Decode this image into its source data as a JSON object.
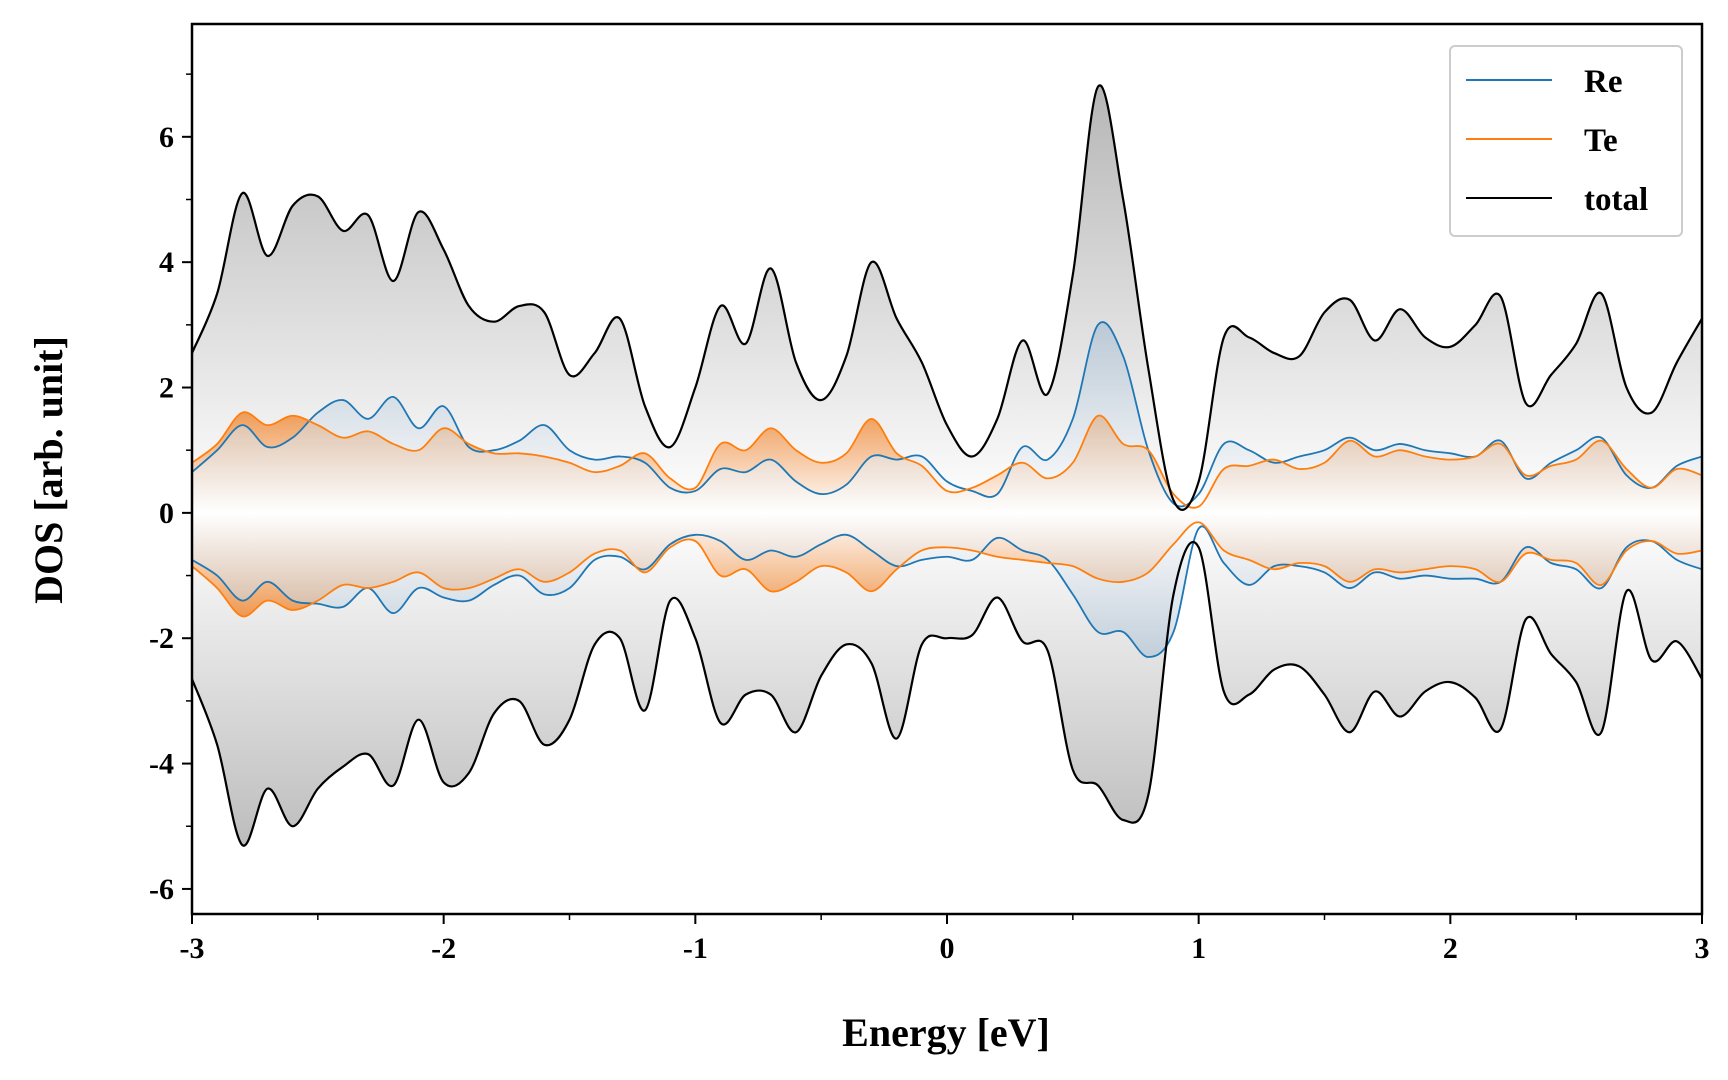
{
  "chart_data": {
    "type": "line",
    "xlabel": "Energy [eV]",
    "ylabel": "DOS [arb. unit]",
    "xlim": [
      -3,
      3
    ],
    "ylim": [
      -6.4,
      7.8
    ],
    "x_ticks": [
      -3,
      -2,
      -1,
      0,
      1,
      2,
      3
    ],
    "x_tick_labels": [
      "-3",
      "-2",
      "-1",
      "0",
      "1",
      "2",
      "3"
    ],
    "y_ticks": [
      -6,
      -4,
      -2,
      0,
      2,
      4,
      6
    ],
    "y_tick_labels": [
      "-6",
      "-4",
      "-2",
      "0",
      "2",
      "4",
      "6"
    ],
    "grid": false,
    "legend_position": "top-right",
    "colors": {
      "Re": "#1f77b4",
      "Te": "#ff7f0e",
      "total": "#000000"
    },
    "x": [
      -3.0,
      -2.9,
      -2.8,
      -2.7,
      -2.6,
      -2.5,
      -2.4,
      -2.3,
      -2.2,
      -2.1,
      -2.0,
      -1.9,
      -1.8,
      -1.7,
      -1.6,
      -1.5,
      -1.4,
      -1.3,
      -1.2,
      -1.1,
      -1.0,
      -0.9,
      -0.8,
      -0.7,
      -0.6,
      -0.5,
      -0.4,
      -0.3,
      -0.2,
      -0.1,
      0.0,
      0.1,
      0.2,
      0.3,
      0.4,
      0.5,
      0.6,
      0.7,
      0.8,
      0.9,
      1.0,
      1.1,
      1.2,
      1.3,
      1.4,
      1.5,
      1.6,
      1.7,
      1.8,
      1.9,
      2.0,
      2.1,
      2.2,
      2.3,
      2.4,
      2.5,
      2.6,
      2.7,
      2.8,
      2.9,
      3.0
    ],
    "series": [
      {
        "name": "Re",
        "up": [
          0.65,
          1.0,
          1.4,
          1.05,
          1.2,
          1.6,
          1.8,
          1.5,
          1.85,
          1.35,
          1.7,
          1.05,
          1.0,
          1.15,
          1.4,
          1.0,
          0.85,
          0.9,
          0.8,
          0.4,
          0.35,
          0.7,
          0.65,
          0.85,
          0.5,
          0.3,
          0.45,
          0.9,
          0.85,
          0.9,
          0.5,
          0.35,
          0.3,
          1.05,
          0.85,
          1.5,
          3.0,
          2.5,
          1.0,
          0.15,
          0.3,
          1.1,
          1.0,
          0.8,
          0.9,
          1.0,
          1.2,
          1.0,
          1.1,
          1.0,
          0.95,
          0.9,
          1.15,
          0.55,
          0.8,
          1.0,
          1.2,
          0.6,
          0.4,
          0.75,
          0.9
        ],
        "down": [
          -0.75,
          -1.0,
          -1.4,
          -1.1,
          -1.4,
          -1.45,
          -1.5,
          -1.2,
          -1.6,
          -1.2,
          -1.35,
          -1.4,
          -1.15,
          -1.0,
          -1.3,
          -1.2,
          -0.75,
          -0.7,
          -0.9,
          -0.5,
          -0.35,
          -0.45,
          -0.75,
          -0.6,
          -0.7,
          -0.5,
          -0.35,
          -0.6,
          -0.85,
          -0.75,
          -0.7,
          -0.75,
          -0.4,
          -0.6,
          -0.75,
          -1.3,
          -1.9,
          -1.9,
          -2.3,
          -1.9,
          -0.25,
          -0.8,
          -1.15,
          -0.85,
          -0.85,
          -0.95,
          -1.2,
          -0.95,
          -1.05,
          -1.0,
          -1.05,
          -1.05,
          -1.1,
          -0.55,
          -0.8,
          -0.9,
          -1.2,
          -0.55,
          -0.45,
          -0.75,
          -0.9
        ]
      },
      {
        "name": "Te",
        "up": [
          0.8,
          1.1,
          1.6,
          1.4,
          1.55,
          1.4,
          1.2,
          1.3,
          1.1,
          1.0,
          1.35,
          1.1,
          0.95,
          0.95,
          0.9,
          0.8,
          0.65,
          0.75,
          0.95,
          0.55,
          0.4,
          1.1,
          1.0,
          1.35,
          1.0,
          0.8,
          0.95,
          1.5,
          0.95,
          0.75,
          0.35,
          0.4,
          0.6,
          0.8,
          0.55,
          0.8,
          1.55,
          1.1,
          1.0,
          0.3,
          0.1,
          0.7,
          0.75,
          0.85,
          0.7,
          0.8,
          1.15,
          0.9,
          1.0,
          0.9,
          0.85,
          0.9,
          1.1,
          0.6,
          0.75,
          0.85,
          1.15,
          0.7,
          0.4,
          0.7,
          0.6
        ],
        "down": [
          -0.85,
          -1.2,
          -1.65,
          -1.4,
          -1.55,
          -1.4,
          -1.15,
          -1.2,
          -1.1,
          -0.95,
          -1.2,
          -1.2,
          -1.05,
          -0.9,
          -1.1,
          -0.95,
          -0.65,
          -0.6,
          -0.95,
          -0.55,
          -0.45,
          -1.0,
          -0.9,
          -1.25,
          -1.1,
          -0.85,
          -0.95,
          -1.25,
          -0.9,
          -0.6,
          -0.55,
          -0.6,
          -0.7,
          -0.75,
          -0.8,
          -0.85,
          -1.05,
          -1.1,
          -0.95,
          -0.5,
          -0.15,
          -0.6,
          -0.75,
          -0.9,
          -0.8,
          -0.85,
          -1.1,
          -0.9,
          -0.95,
          -0.9,
          -0.85,
          -0.9,
          -1.1,
          -0.65,
          -0.75,
          -0.8,
          -1.15,
          -0.6,
          -0.45,
          -0.65,
          -0.6
        ]
      },
      {
        "name": "total",
        "up": [
          2.55,
          3.5,
          5.1,
          4.1,
          4.9,
          5.05,
          4.5,
          4.75,
          3.7,
          4.8,
          4.2,
          3.3,
          3.05,
          3.3,
          3.2,
          2.2,
          2.55,
          3.1,
          1.7,
          1.05,
          2.0,
          3.3,
          2.7,
          3.9,
          2.4,
          1.8,
          2.5,
          4.0,
          3.1,
          2.4,
          1.4,
          0.9,
          1.5,
          2.75,
          1.9,
          3.8,
          6.8,
          5.0,
          2.3,
          0.2,
          0.5,
          2.8,
          2.8,
          2.55,
          2.5,
          3.2,
          3.4,
          2.75,
          3.25,
          2.8,
          2.65,
          3.0,
          3.45,
          1.75,
          2.2,
          2.7,
          3.5,
          2.0,
          1.6,
          2.4,
          3.1
        ],
        "down": [
          -2.65,
          -3.7,
          -5.3,
          -4.4,
          -5.0,
          -4.4,
          -4.05,
          -3.85,
          -4.35,
          -3.3,
          -4.3,
          -4.15,
          -3.2,
          -3.0,
          -3.7,
          -3.3,
          -2.1,
          -2.0,
          -3.15,
          -1.4,
          -2.0,
          -3.35,
          -2.9,
          -2.9,
          -3.5,
          -2.6,
          -2.1,
          -2.4,
          -3.6,
          -2.1,
          -2.0,
          -1.95,
          -1.35,
          -2.05,
          -2.2,
          -4.1,
          -4.35,
          -4.9,
          -4.5,
          -1.3,
          -0.55,
          -2.85,
          -2.9,
          -2.5,
          -2.45,
          -2.9,
          -3.5,
          -2.85,
          -3.25,
          -2.85,
          -2.7,
          -2.95,
          -3.45,
          -1.7,
          -2.25,
          -2.7,
          -3.5,
          -1.25,
          -2.35,
          -2.05,
          -2.65
        ]
      }
    ]
  }
}
